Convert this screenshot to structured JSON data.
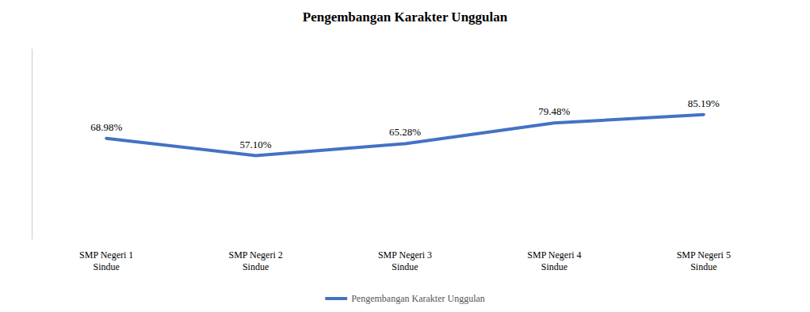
{
  "chart_data": {
    "type": "line",
    "title": "Pengembangan Karakter Unggulan",
    "categories": [
      "SMP Negeri 1\nSindue",
      "SMP Negeri 2\nSindue",
      "SMP Negeri 3\nSindue",
      "SMP Negeri 4\nSindue",
      "SMP Negeri 5\nSindue"
    ],
    "series": [
      {
        "name": "Pengembangan Karakter Unggulan",
        "color": "#4472C4",
        "values": [
          68.98,
          57.1,
          65.28,
          79.48,
          85.19
        ],
        "value_labels": [
          "68.98%",
          "57.10%",
          "65.28%",
          "79.48%",
          "85.19%"
        ]
      }
    ],
    "ylim": [
      0,
      130
    ],
    "grid": false,
    "data_labels": true,
    "tick_labels": "x",
    "legend": "bottom"
  }
}
